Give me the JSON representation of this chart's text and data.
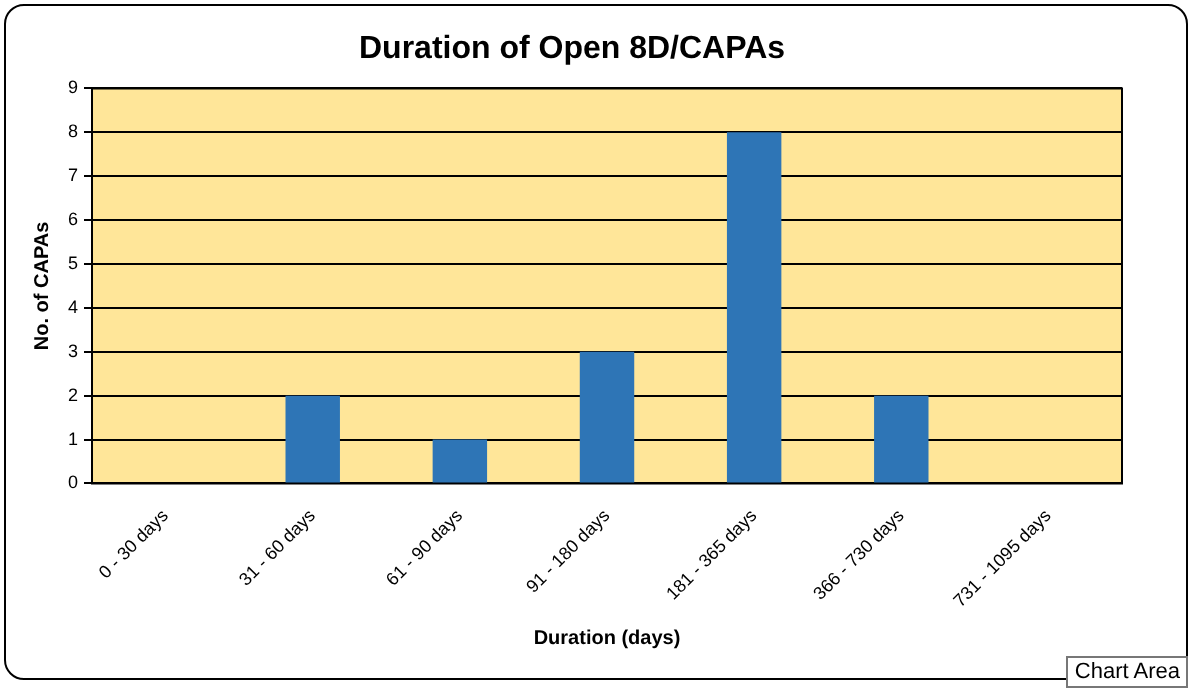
{
  "chart_data": {
    "type": "bar",
    "title": "Duration of Open 8D/CAPAs",
    "xlabel": "Duration (days)",
    "ylabel": "No. of CAPAs",
    "categories": [
      "0 - 30 days",
      "31 - 60 days",
      "61 - 90 days",
      "91 - 180 days",
      "181 - 365 days",
      "366 - 730 days",
      "731 - 1095 days"
    ],
    "values": [
      0,
      2,
      1,
      3,
      8,
      2,
      0
    ],
    "color": "#2e75b6",
    "ylim": [
      0,
      9
    ],
    "yticks": [
      0,
      1,
      2,
      3,
      4,
      5,
      6,
      7,
      8,
      9
    ],
    "grid": "y",
    "legend": false,
    "annotations": [
      "Chart Area"
    ]
  }
}
